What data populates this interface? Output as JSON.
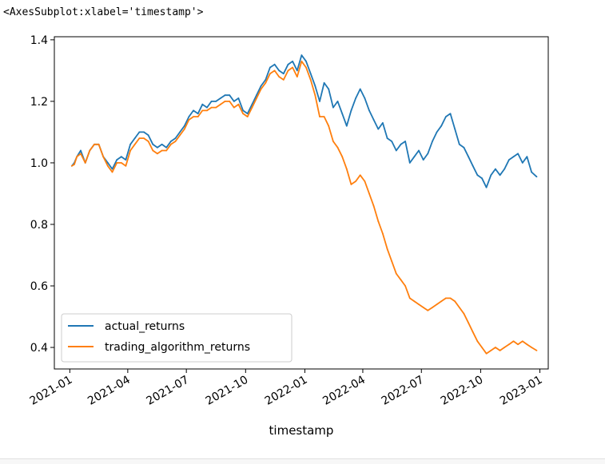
{
  "output_repr": "<AxesSubplot:xlabel='timestamp'>",
  "chart_data": {
    "type": "line",
    "xlabel": "timestamp",
    "ylabel": "",
    "x_ticks": [
      "2021-01",
      "2021-04",
      "2021-07",
      "2021-10",
      "2022-01",
      "2022-04",
      "2022-07",
      "2022-10",
      "2023-01"
    ],
    "y_ticks": [
      "0.4",
      "0.6",
      "0.8",
      "1.0",
      "1.2",
      "1.4"
    ],
    "xlim": [
      "2020-12-08",
      "2023-01-14"
    ],
    "ylim": [
      0.33,
      1.41
    ],
    "grid": false,
    "legend_position": "lower-left",
    "series": [
      {
        "name": "actual_returns",
        "color": "#1f77b4",
        "points": [
          [
            "2021-01-04",
            0.99
          ],
          [
            "2021-01-08",
            1.0
          ],
          [
            "2021-01-12",
            1.02
          ],
          [
            "2021-01-18",
            1.04
          ],
          [
            "2021-01-25",
            1.0
          ],
          [
            "2021-02-01",
            1.04
          ],
          [
            "2021-02-08",
            1.06
          ],
          [
            "2021-02-15",
            1.06
          ],
          [
            "2021-02-22",
            1.02
          ],
          [
            "2021-03-01",
            1.0
          ],
          [
            "2021-03-08",
            0.98
          ],
          [
            "2021-03-15",
            1.01
          ],
          [
            "2021-03-22",
            1.02
          ],
          [
            "2021-03-29",
            1.01
          ],
          [
            "2021-04-05",
            1.06
          ],
          [
            "2021-04-12",
            1.08
          ],
          [
            "2021-04-19",
            1.1
          ],
          [
            "2021-04-26",
            1.1
          ],
          [
            "2021-05-03",
            1.09
          ],
          [
            "2021-05-10",
            1.06
          ],
          [
            "2021-05-17",
            1.05
          ],
          [
            "2021-05-24",
            1.06
          ],
          [
            "2021-05-31",
            1.05
          ],
          [
            "2021-06-07",
            1.07
          ],
          [
            "2021-06-14",
            1.08
          ],
          [
            "2021-06-21",
            1.1
          ],
          [
            "2021-06-28",
            1.12
          ],
          [
            "2021-07-05",
            1.15
          ],
          [
            "2021-07-12",
            1.17
          ],
          [
            "2021-07-19",
            1.16
          ],
          [
            "2021-07-26",
            1.19
          ],
          [
            "2021-08-02",
            1.18
          ],
          [
            "2021-08-09",
            1.2
          ],
          [
            "2021-08-16",
            1.2
          ],
          [
            "2021-08-23",
            1.21
          ],
          [
            "2021-08-30",
            1.22
          ],
          [
            "2021-09-06",
            1.22
          ],
          [
            "2021-09-13",
            1.2
          ],
          [
            "2021-09-20",
            1.21
          ],
          [
            "2021-09-27",
            1.17
          ],
          [
            "2021-10-04",
            1.16
          ],
          [
            "2021-10-11",
            1.19
          ],
          [
            "2021-10-18",
            1.22
          ],
          [
            "2021-10-25",
            1.25
          ],
          [
            "2021-11-01",
            1.27
          ],
          [
            "2021-11-08",
            1.31
          ],
          [
            "2021-11-15",
            1.32
          ],
          [
            "2021-11-22",
            1.3
          ],
          [
            "2021-11-29",
            1.29
          ],
          [
            "2021-12-06",
            1.32
          ],
          [
            "2021-12-13",
            1.33
          ],
          [
            "2021-12-20",
            1.3
          ],
          [
            "2021-12-27",
            1.35
          ],
          [
            "2022-01-03",
            1.33
          ],
          [
            "2022-01-10",
            1.29
          ],
          [
            "2022-01-17",
            1.25
          ],
          [
            "2022-01-24",
            1.2
          ],
          [
            "2022-01-31",
            1.26
          ],
          [
            "2022-02-07",
            1.24
          ],
          [
            "2022-02-14",
            1.18
          ],
          [
            "2022-02-21",
            1.2
          ],
          [
            "2022-02-28",
            1.16
          ],
          [
            "2022-03-07",
            1.12
          ],
          [
            "2022-03-14",
            1.17
          ],
          [
            "2022-03-21",
            1.21
          ],
          [
            "2022-03-28",
            1.24
          ],
          [
            "2022-04-04",
            1.21
          ],
          [
            "2022-04-11",
            1.17
          ],
          [
            "2022-04-18",
            1.14
          ],
          [
            "2022-04-25",
            1.11
          ],
          [
            "2022-05-02",
            1.13
          ],
          [
            "2022-05-09",
            1.08
          ],
          [
            "2022-05-16",
            1.07
          ],
          [
            "2022-05-23",
            1.04
          ],
          [
            "2022-05-30",
            1.06
          ],
          [
            "2022-06-06",
            1.07
          ],
          [
            "2022-06-13",
            1.0
          ],
          [
            "2022-06-20",
            1.02
          ],
          [
            "2022-06-27",
            1.04
          ],
          [
            "2022-07-04",
            1.01
          ],
          [
            "2022-07-11",
            1.03
          ],
          [
            "2022-07-18",
            1.07
          ],
          [
            "2022-07-25",
            1.1
          ],
          [
            "2022-08-01",
            1.12
          ],
          [
            "2022-08-08",
            1.15
          ],
          [
            "2022-08-15",
            1.16
          ],
          [
            "2022-08-22",
            1.11
          ],
          [
            "2022-08-29",
            1.06
          ],
          [
            "2022-09-05",
            1.05
          ],
          [
            "2022-09-12",
            1.02
          ],
          [
            "2022-09-19",
            0.99
          ],
          [
            "2022-09-26",
            0.96
          ],
          [
            "2022-10-03",
            0.95
          ],
          [
            "2022-10-10",
            0.92
          ],
          [
            "2022-10-17",
            0.96
          ],
          [
            "2022-10-24",
            0.98
          ],
          [
            "2022-10-31",
            0.96
          ],
          [
            "2022-11-07",
            0.98
          ],
          [
            "2022-11-14",
            1.01
          ],
          [
            "2022-11-21",
            1.02
          ],
          [
            "2022-11-28",
            1.03
          ],
          [
            "2022-12-05",
            1.0
          ],
          [
            "2022-12-12",
            1.02
          ],
          [
            "2022-12-19",
            0.97
          ],
          [
            "2022-12-27",
            0.955
          ]
        ]
      },
      {
        "name": "trading_algorithm_returns",
        "color": "#ff7f0e",
        "points": [
          [
            "2021-01-04",
            0.99
          ],
          [
            "2021-01-08",
            0.995
          ],
          [
            "2021-01-12",
            1.02
          ],
          [
            "2021-01-18",
            1.03
          ],
          [
            "2021-01-25",
            1.0
          ],
          [
            "2021-02-01",
            1.04
          ],
          [
            "2021-02-08",
            1.06
          ],
          [
            "2021-02-15",
            1.06
          ],
          [
            "2021-02-22",
            1.02
          ],
          [
            "2021-03-01",
            0.99
          ],
          [
            "2021-03-08",
            0.97
          ],
          [
            "2021-03-15",
            1.0
          ],
          [
            "2021-03-22",
            1.0
          ],
          [
            "2021-03-29",
            0.99
          ],
          [
            "2021-04-05",
            1.04
          ],
          [
            "2021-04-12",
            1.06
          ],
          [
            "2021-04-19",
            1.08
          ],
          [
            "2021-04-26",
            1.08
          ],
          [
            "2021-05-03",
            1.07
          ],
          [
            "2021-05-10",
            1.04
          ],
          [
            "2021-05-17",
            1.03
          ],
          [
            "2021-05-24",
            1.04
          ],
          [
            "2021-05-31",
            1.04
          ],
          [
            "2021-06-07",
            1.06
          ],
          [
            "2021-06-14",
            1.07
          ],
          [
            "2021-06-21",
            1.09
          ],
          [
            "2021-06-28",
            1.11
          ],
          [
            "2021-07-05",
            1.14
          ],
          [
            "2021-07-12",
            1.15
          ],
          [
            "2021-07-19",
            1.15
          ],
          [
            "2021-07-26",
            1.17
          ],
          [
            "2021-08-02",
            1.17
          ],
          [
            "2021-08-09",
            1.18
          ],
          [
            "2021-08-16",
            1.18
          ],
          [
            "2021-08-23",
            1.19
          ],
          [
            "2021-08-30",
            1.2
          ],
          [
            "2021-09-06",
            1.2
          ],
          [
            "2021-09-13",
            1.18
          ],
          [
            "2021-09-20",
            1.19
          ],
          [
            "2021-09-27",
            1.16
          ],
          [
            "2021-10-04",
            1.15
          ],
          [
            "2021-10-11",
            1.18
          ],
          [
            "2021-10-18",
            1.21
          ],
          [
            "2021-10-25",
            1.24
          ],
          [
            "2021-11-01",
            1.26
          ],
          [
            "2021-11-08",
            1.29
          ],
          [
            "2021-11-15",
            1.3
          ],
          [
            "2021-11-22",
            1.28
          ],
          [
            "2021-11-29",
            1.27
          ],
          [
            "2021-12-06",
            1.3
          ],
          [
            "2021-12-13",
            1.31
          ],
          [
            "2021-12-20",
            1.28
          ],
          [
            "2021-12-27",
            1.33
          ],
          [
            "2022-01-03",
            1.31
          ],
          [
            "2022-01-10",
            1.27
          ],
          [
            "2022-01-17",
            1.22
          ],
          [
            "2022-01-24",
            1.15
          ],
          [
            "2022-01-31",
            1.15
          ],
          [
            "2022-02-07",
            1.12
          ],
          [
            "2022-02-14",
            1.07
          ],
          [
            "2022-02-21",
            1.05
          ],
          [
            "2022-02-28",
            1.02
          ],
          [
            "2022-03-07",
            0.98
          ],
          [
            "2022-03-14",
            0.93
          ],
          [
            "2022-03-21",
            0.94
          ],
          [
            "2022-03-28",
            0.96
          ],
          [
            "2022-04-04",
            0.94
          ],
          [
            "2022-04-11",
            0.9
          ],
          [
            "2022-04-18",
            0.86
          ],
          [
            "2022-04-25",
            0.81
          ],
          [
            "2022-05-02",
            0.77
          ],
          [
            "2022-05-09",
            0.72
          ],
          [
            "2022-05-16",
            0.68
          ],
          [
            "2022-05-23",
            0.64
          ],
          [
            "2022-05-30",
            0.62
          ],
          [
            "2022-06-06",
            0.6
          ],
          [
            "2022-06-13",
            0.56
          ],
          [
            "2022-06-20",
            0.55
          ],
          [
            "2022-06-27",
            0.54
          ],
          [
            "2022-07-04",
            0.53
          ],
          [
            "2022-07-11",
            0.52
          ],
          [
            "2022-07-18",
            0.53
          ],
          [
            "2022-07-25",
            0.54
          ],
          [
            "2022-08-01",
            0.55
          ],
          [
            "2022-08-08",
            0.56
          ],
          [
            "2022-08-15",
            0.56
          ],
          [
            "2022-08-22",
            0.55
          ],
          [
            "2022-08-29",
            0.53
          ],
          [
            "2022-09-05",
            0.51
          ],
          [
            "2022-09-12",
            0.48
          ],
          [
            "2022-09-19",
            0.45
          ],
          [
            "2022-09-26",
            0.42
          ],
          [
            "2022-10-03",
            0.4
          ],
          [
            "2022-10-10",
            0.38
          ],
          [
            "2022-10-17",
            0.39
          ],
          [
            "2022-10-24",
            0.4
          ],
          [
            "2022-10-31",
            0.39
          ],
          [
            "2022-11-07",
            0.4
          ],
          [
            "2022-11-14",
            0.41
          ],
          [
            "2022-11-21",
            0.42
          ],
          [
            "2022-11-28",
            0.41
          ],
          [
            "2022-12-05",
            0.42
          ],
          [
            "2022-12-12",
            0.41
          ],
          [
            "2022-12-19",
            0.4
          ],
          [
            "2022-12-27",
            0.39
          ]
        ]
      }
    ]
  }
}
